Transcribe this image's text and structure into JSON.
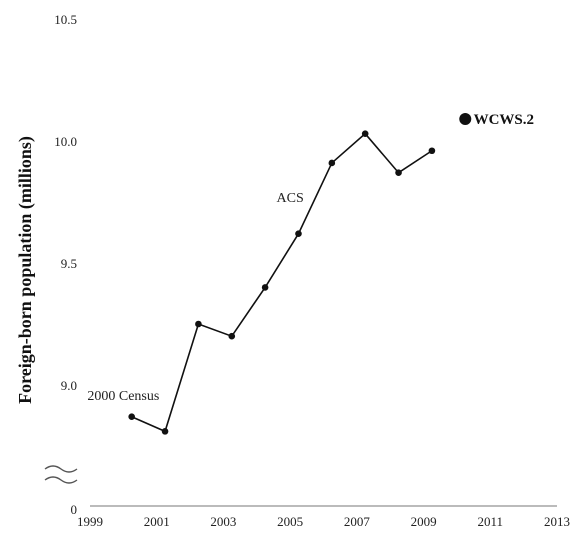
{
  "chart_data": {
    "type": "line",
    "ylabel": "Foreign-born population (millions)",
    "xlabel": "",
    "title": "",
    "x_ticks": [
      "1999",
      "2001",
      "2003",
      "2005",
      "2007",
      "2009",
      "2011",
      "2013"
    ],
    "y_ticks": [
      "0",
      "9.0",
      "9.5",
      "10.0",
      "10.5"
    ],
    "y_axis_break": true,
    "xlim": [
      1999,
      2013
    ],
    "ylim": [
      8.5,
      10.5
    ],
    "grid": false,
    "series": [
      {
        "name": "ACS",
        "x": [
          2000.25,
          2001.25,
          2002.25,
          2003.25,
          2004.25,
          2005.25,
          2006.25,
          2007.25,
          2008.25,
          2009.25
        ],
        "values": [
          8.87,
          8.81,
          9.25,
          9.2,
          9.4,
          9.62,
          9.91,
          10.03,
          9.87,
          9.96
        ]
      }
    ],
    "highlight_point": {
      "label": "WCWS.2",
      "x": 2010.25,
      "value": 10.09
    },
    "annotations": [
      {
        "text": "2000 Census",
        "x": 2000.0,
        "value": 8.96
      },
      {
        "text": "ACS",
        "x": 2005.0,
        "value": 9.77
      },
      {
        "text": "WCWS.2",
        "x": 2010.5,
        "value": 10.09
      }
    ]
  }
}
